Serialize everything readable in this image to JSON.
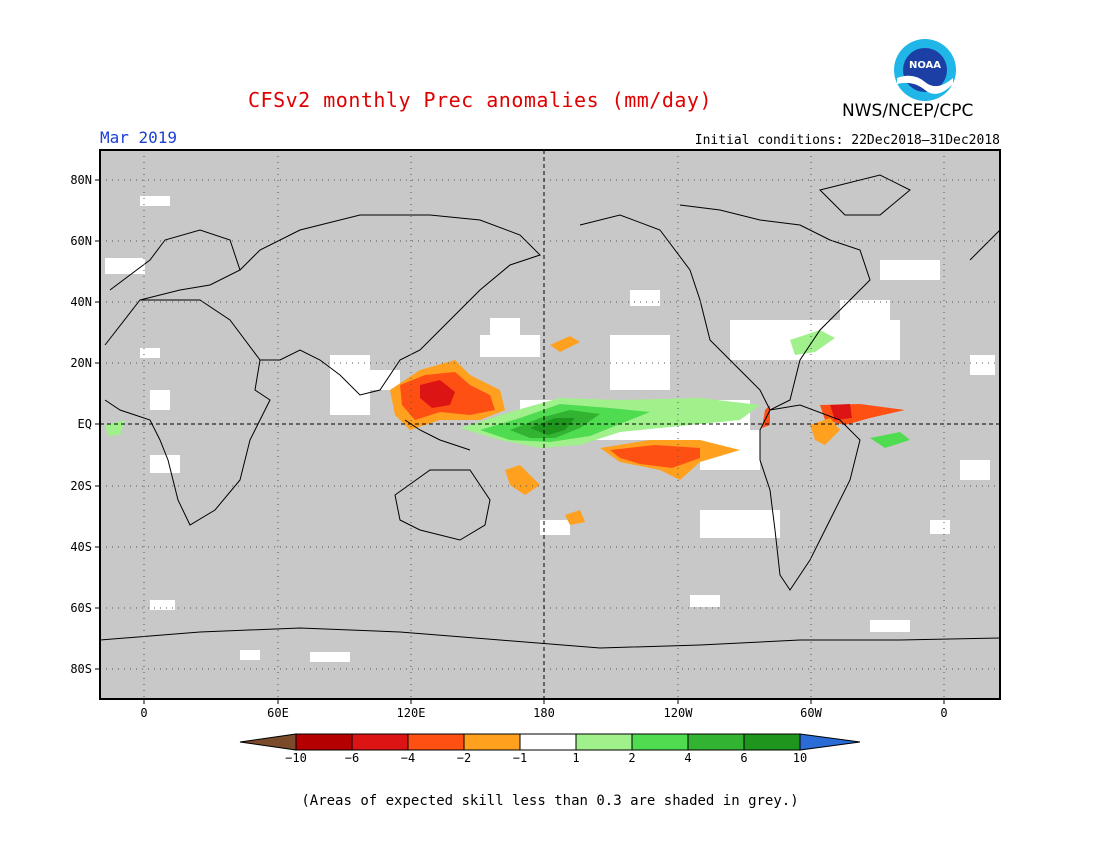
{
  "header": {
    "title": "CFSv2 monthly Prec anomalies (mm/day)",
    "agency": "NWS/NCEP/CPC",
    "logo_text": "NOAA",
    "month": "Mar 2019",
    "initial_conditions": "Initial conditions: 22Dec2018–31Dec2018"
  },
  "map": {
    "lat_labels": [
      "80N",
      "60N",
      "40N",
      "20N",
      "EQ",
      "20S",
      "40S",
      "60S",
      "80S"
    ],
    "lon_labels": [
      "0",
      "60E",
      "120E",
      "180",
      "120W",
      "60W",
      "0"
    ],
    "colors": {
      "skill_mask_grey": "#c8c8c8",
      "neutral": "#ffffff",
      "coastline": "#000000"
    }
  },
  "colorbar": {
    "labels": [
      "−10",
      "−6",
      "−4",
      "−2",
      "−1",
      "1",
      "2",
      "4",
      "6",
      "10"
    ],
    "colors": [
      "#7a4a2a",
      "#b40000",
      "#dc1414",
      "#ff5014",
      "#ffa01e",
      "#ffffff",
      "#a0f08c",
      "#50dc50",
      "#32b432",
      "#1e961e",
      "#2a6bd6"
    ]
  },
  "footnote": "(Areas of expected skill less than 0.3 are shaded in grey.)"
}
